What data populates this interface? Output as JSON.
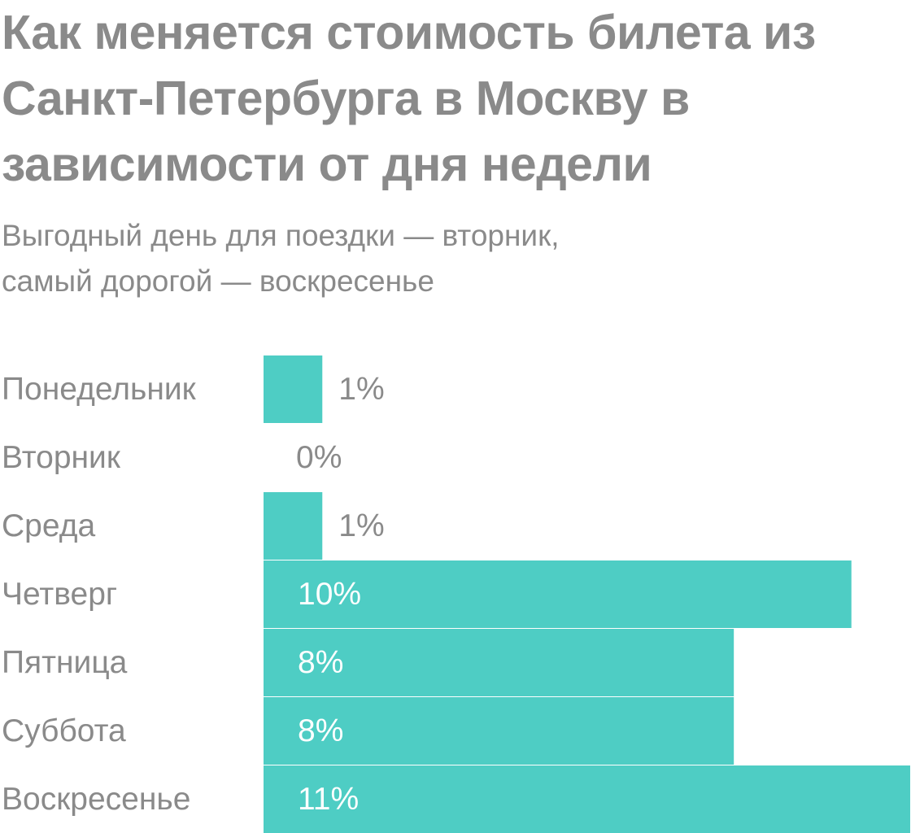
{
  "chart_data": {
    "type": "bar",
    "orientation": "horizontal",
    "title": "Как меняется стоимость билета из Санкт-Петербурга в Москву в зависимости от дня недели",
    "subtitle_lines": [
      "Выгодный день для поездки — вторник,",
      "самый дорогой — воскресенье"
    ],
    "categories": [
      "Понедельник",
      "Вторник",
      "Среда",
      "Четверг",
      "Пятница",
      "Суббота",
      "Воскресенье"
    ],
    "values": [
      1,
      0,
      1,
      10,
      8,
      8,
      11
    ],
    "value_labels": [
      "1%",
      "0%",
      "1%",
      "10%",
      "8%",
      "8%",
      "11%"
    ],
    "xlim": [
      0,
      11
    ],
    "grid": false,
    "bar_color": "#4ecdc4",
    "text_color": "#8a8a8a",
    "inside_label_color": "#ffffff"
  }
}
